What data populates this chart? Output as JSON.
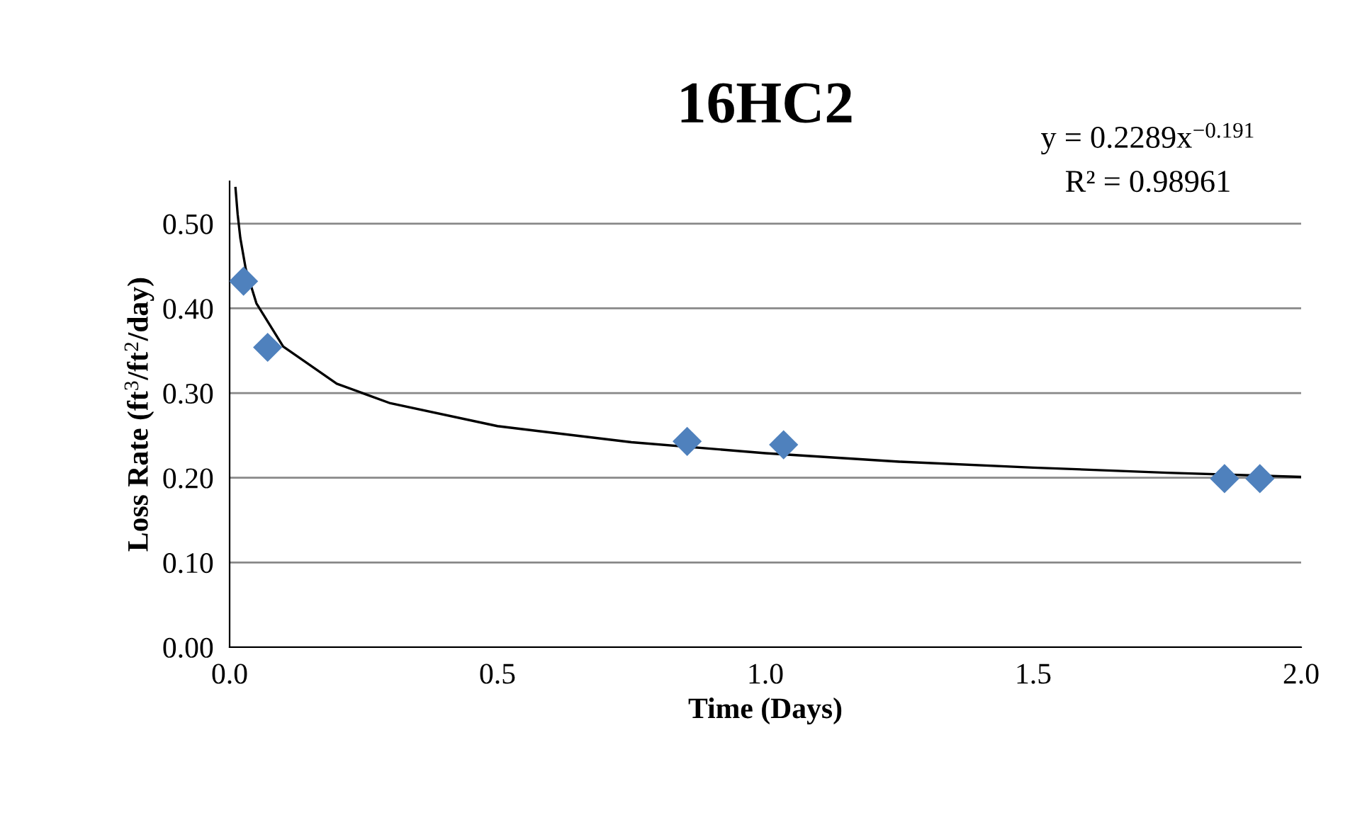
{
  "chart_data": {
    "type": "scatter",
    "title": "16HC2",
    "xlabel": "Time (Days)",
    "ylabel": "Loss Rate (ft$^{3}$/ft$^{2}$/day)",
    "annotations": [
      "y = 0.2289x$^{−0.191}$",
      "R² = 0.98961"
    ],
    "series": [
      {
        "color": "#4f81bd",
        "marker": "diamond",
        "x": [
          0.026,
          0.071,
          0.854,
          1.034,
          1.857,
          1.923
        ],
        "values": [
          0.432,
          0.354,
          0.243,
          0.239,
          0.199,
          0.199
        ]
      },
      {
        "type": "line",
        "color": "#000000",
        "marker": "none",
        "line_style": "solid",
        "x": [
          0.011,
          0.015,
          0.02,
          0.03,
          0.05,
          0.1,
          0.2,
          0.3,
          0.5,
          0.75,
          1.0,
          1.25,
          1.5,
          1.75,
          2.0
        ],
        "values": [
          0.542,
          0.511,
          0.483,
          0.447,
          0.406,
          0.355,
          0.311,
          0.288,
          0.261,
          0.242,
          0.229,
          0.219,
          0.212,
          0.206,
          0.201
        ]
      }
    ],
    "xlim": [
      0,
      2
    ],
    "xticks": [
      {
        "value": 0,
        "label": "0.0"
      },
      {
        "value": 0.5,
        "label": "0.5"
      },
      {
        "value": 1,
        "label": "1.0"
      },
      {
        "value": 1.5,
        "label": "1.5"
      },
      {
        "value": 2,
        "label": "2.0"
      }
    ],
    "ylim": [
      0,
      0.55
    ],
    "yticks": [
      {
        "value": 0,
        "label": "0.00"
      },
      {
        "value": 0.1,
        "label": "0.10"
      },
      {
        "value": 0.2,
        "label": "0.20"
      },
      {
        "value": 0.3,
        "label": "0.30"
      },
      {
        "value": 0.4,
        "label": "0.40"
      },
      {
        "value": 0.5,
        "label": "0.50"
      }
    ],
    "grid": "y",
    "legend": false
  }
}
